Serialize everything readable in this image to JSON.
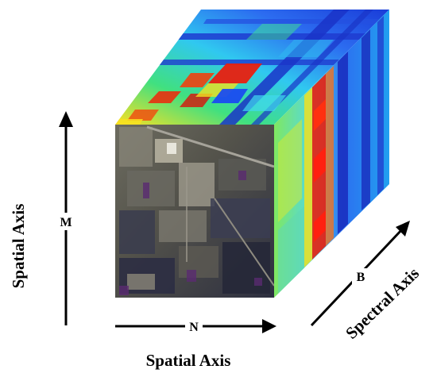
{
  "labels": {
    "spatial_vertical": "Spatial Axis",
    "spatial_horizontal": "Spatial Axis",
    "spectral": "Spectral Axis",
    "dim_m": "M",
    "dim_n": "N",
    "dim_b": "B"
  },
  "colors": {
    "arrow": "#000000",
    "heat_low": "#1a3cd8",
    "heat_mid": "#2ee6a0",
    "heat_high": "#e4e82a",
    "heat_peak": "#e01010"
  }
}
